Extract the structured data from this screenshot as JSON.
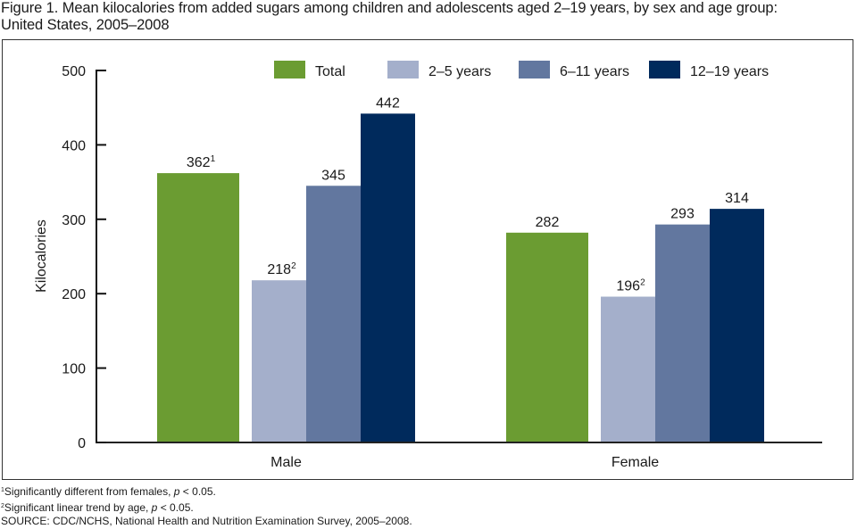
{
  "title_line1": "Figure 1. Mean kilocalories from added sugars among children and adolescents aged 2–19 years, by sex and age group:",
  "title_line2": "United States, 2005–2008",
  "footnotes": [
    {
      "mark": "1",
      "pre": "Significantly different from females, ",
      "italic": "p",
      "post": " < 0.05."
    },
    {
      "mark": "2",
      "pre": "Significant linear trend by age, ",
      "italic": "p",
      "post": " < 0.05."
    }
  ],
  "source": "SOURCE: CDC/NCHS, National Health and Nutrition Examination Survey, 2005–2008.",
  "chart_data": {
    "type": "bar",
    "title": "Mean kilocalories from added sugars among children and adolescents aged 2–19 years, by sex and age group: United States, 2005–2008",
    "xlabel": "",
    "ylabel": "Kilocalories",
    "ylim": [
      0,
      500
    ],
    "yticks": [
      0,
      100,
      200,
      300,
      400,
      500
    ],
    "grid": false,
    "legend_position": "top-right",
    "categories": [
      "Male",
      "Female"
    ],
    "series": [
      {
        "name": "Total",
        "color": "#6b9c32",
        "values": [
          362,
          282
        ],
        "labels": [
          "362",
          "282"
        ],
        "superscripts": [
          "1",
          ""
        ]
      },
      {
        "name": "2–5 years",
        "color": "#a4afcb",
        "values": [
          218,
          196
        ],
        "labels": [
          "218",
          "196"
        ],
        "superscripts": [
          "2",
          "2"
        ]
      },
      {
        "name": "6–11 years",
        "color": "#62779f",
        "values": [
          345,
          293
        ],
        "labels": [
          "345",
          "293"
        ],
        "superscripts": [
          "",
          ""
        ]
      },
      {
        "name": "12–19 years",
        "color": "#002a5c",
        "values": [
          442,
          314
        ],
        "labels": [
          "442",
          "314"
        ],
        "superscripts": [
          "",
          ""
        ]
      }
    ]
  }
}
